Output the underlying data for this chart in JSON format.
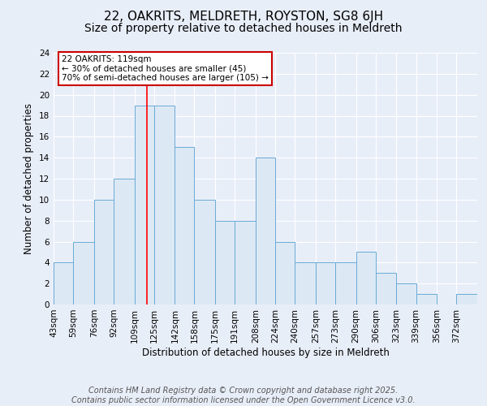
{
  "title": "22, OAKRITS, MELDRETH, ROYSTON, SG8 6JH",
  "subtitle": "Size of property relative to detached houses in Meldreth",
  "xlabel": "Distribution of detached houses by size in Meldreth",
  "ylabel": "Number of detached properties",
  "bar_values": [
    4,
    6,
    10,
    12,
    19,
    19,
    15,
    10,
    8,
    8,
    14,
    6,
    4,
    4,
    4,
    5,
    3,
    2,
    1,
    0,
    1
  ],
  "bin_edges": [
    43,
    59,
    76,
    92,
    109,
    125,
    142,
    158,
    175,
    191,
    208,
    224,
    240,
    257,
    273,
    290,
    306,
    323,
    339,
    356,
    372,
    389
  ],
  "x_labels": [
    "43sqm",
    "59sqm",
    "76sqm",
    "92sqm",
    "109sqm",
    "125sqm",
    "142sqm",
    "158sqm",
    "175sqm",
    "191sqm",
    "208sqm",
    "224sqm",
    "240sqm",
    "257sqm",
    "273sqm",
    "290sqm",
    "306sqm",
    "323sqm",
    "339sqm",
    "356sqm",
    "372sqm"
  ],
  "bar_color": "#dce9f5",
  "bar_edge_color": "#6aaad4",
  "red_line_x": 119,
  "ylim": [
    0,
    24
  ],
  "yticks": [
    0,
    2,
    4,
    6,
    8,
    10,
    12,
    14,
    16,
    18,
    20,
    22,
    24
  ],
  "annotation_text": "22 OAKRITS: 119sqm\n← 30% of detached houses are smaller (45)\n70% of semi-detached houses are larger (105) →",
  "annotation_box_color": "#ffffff",
  "annotation_box_edge_color": "#cc0000",
  "footer_text": "Contains HM Land Registry data © Crown copyright and database right 2025.\nContains public sector information licensed under the Open Government Licence v3.0.",
  "background_color": "#e8eef8",
  "grid_color": "#ffffff",
  "title_fontsize": 11,
  "subtitle_fontsize": 10,
  "label_fontsize": 8.5,
  "tick_fontsize": 7.5,
  "footer_fontsize": 7
}
